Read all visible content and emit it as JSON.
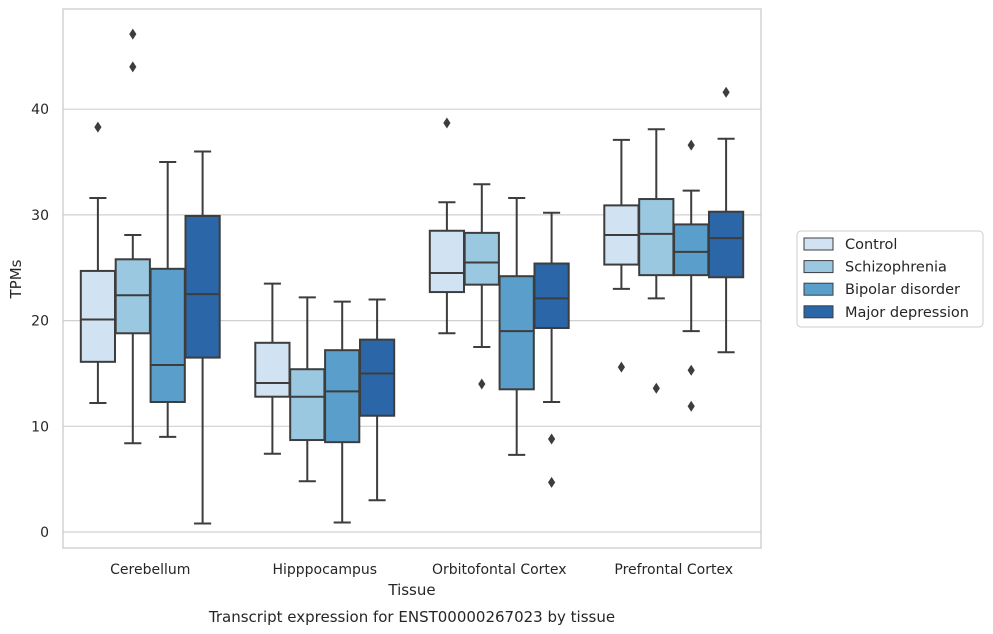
{
  "chart_data": {
    "type": "box",
    "caption": "Transcript expression for ENST00000267023 by tissue",
    "xlabel": "Tissue",
    "ylabel": "TPMs",
    "ylim": [
      -1.5,
      49.5
    ],
    "yticks": [
      0,
      10,
      20,
      30,
      40
    ],
    "grid": "horizontal",
    "legend_position": "right",
    "categories": [
      "Cerebellum",
      "Hipppocampus",
      "Orbitofontal Cortex",
      "Prefrontal Cortex"
    ],
    "series": [
      {
        "name": "Control",
        "color": "#d1e2f2",
        "boxes": [
          {
            "whislo": 12.2,
            "q1": 16.1,
            "med": 20.1,
            "q3": 24.7,
            "whishi": 31.6,
            "fliers": [
              38.3
            ]
          },
          {
            "whislo": 7.4,
            "q1": 12.8,
            "med": 14.1,
            "q3": 17.9,
            "whishi": 23.5,
            "fliers": []
          },
          {
            "whislo": 18.8,
            "q1": 22.7,
            "med": 24.5,
            "q3": 28.5,
            "whishi": 31.2,
            "fliers": [
              38.7
            ]
          },
          {
            "whislo": 23.0,
            "q1": 25.3,
            "med": 28.1,
            "q3": 30.9,
            "whishi": 37.1,
            "fliers": [
              15.6
            ]
          }
        ]
      },
      {
        "name": "Schizophrenia",
        "color": "#9ac8e0",
        "boxes": [
          {
            "whislo": 8.4,
            "q1": 18.8,
            "med": 22.4,
            "q3": 25.8,
            "whishi": 28.1,
            "fliers": [
              44.0,
              47.1
            ]
          },
          {
            "whislo": 4.8,
            "q1": 8.7,
            "med": 12.8,
            "q3": 15.4,
            "whishi": 22.2,
            "fliers": []
          },
          {
            "whislo": 17.5,
            "q1": 23.4,
            "med": 25.5,
            "q3": 28.3,
            "whishi": 32.9,
            "fliers": [
              14.0
            ]
          },
          {
            "whislo": 22.1,
            "q1": 24.3,
            "med": 28.2,
            "q3": 31.5,
            "whishi": 38.1,
            "fliers": [
              13.6
            ]
          }
        ]
      },
      {
        "name": "Bipolar disorder",
        "color": "#5a9fcb",
        "boxes": [
          {
            "whislo": 9.0,
            "q1": 12.3,
            "med": 15.8,
            "q3": 24.9,
            "whishi": 35.0,
            "fliers": []
          },
          {
            "whislo": 0.9,
            "q1": 8.5,
            "med": 13.3,
            "q3": 17.2,
            "whishi": 21.8,
            "fliers": []
          },
          {
            "whislo": 7.3,
            "q1": 13.5,
            "med": 19.0,
            "q3": 24.2,
            "whishi": 31.6,
            "fliers": []
          },
          {
            "whislo": 19.0,
            "q1": 24.3,
            "med": 26.5,
            "q3": 29.1,
            "whishi": 32.3,
            "fliers": [
              36.6,
              15.3,
              11.9
            ]
          }
        ]
      },
      {
        "name": "Major depression",
        "color": "#2a66a8",
        "boxes": [
          {
            "whislo": 0.8,
            "q1": 16.5,
            "med": 22.5,
            "q3": 29.9,
            "whishi": 36.0,
            "fliers": []
          },
          {
            "whislo": 3.0,
            "q1": 11.0,
            "med": 15.0,
            "q3": 18.2,
            "whishi": 22.0,
            "fliers": []
          },
          {
            "whislo": 12.3,
            "q1": 19.3,
            "med": 22.1,
            "q3": 25.4,
            "whishi": 30.2,
            "fliers": [
              8.8,
              4.7
            ]
          },
          {
            "whislo": 17.0,
            "q1": 24.1,
            "med": 27.8,
            "q3": 30.3,
            "whishi": 37.2,
            "fliers": [
              41.6
            ]
          }
        ]
      }
    ]
  }
}
